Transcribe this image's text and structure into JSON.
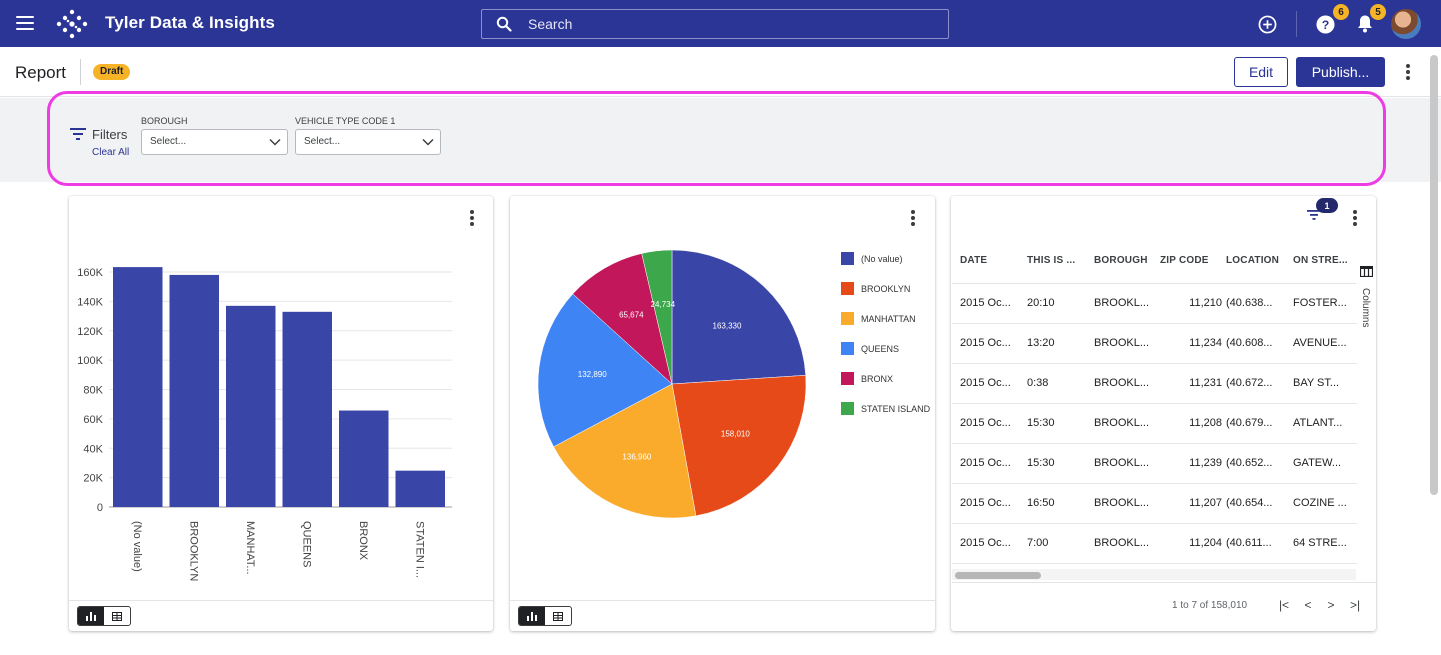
{
  "app": {
    "title": "Tyler Data & Insights"
  },
  "search": {
    "placeholder": "Search"
  },
  "topbar": {
    "help_badge": "6",
    "notification_badge": "5"
  },
  "report": {
    "title": "Report",
    "status": "Draft",
    "edit_label": "Edit",
    "publish_label": "Publish..."
  },
  "filters": {
    "label": "Filters",
    "clear_all": "Clear All",
    "borough": {
      "label": "BOROUGH",
      "placeholder": "Select..."
    },
    "vehicle_type": {
      "label": "VEHICLE TYPE CODE 1",
      "placeholder": "Select..."
    }
  },
  "chart_data": [
    {
      "type": "bar",
      "categories": [
        "(No value)",
        "BROOKLYN",
        "MANHAT...",
        "QUEENS",
        "BRONX",
        "STATEN I..."
      ],
      "values": [
        163330,
        158010,
        136960,
        132890,
        65674,
        24734
      ],
      "ylim": [
        0,
        160000
      ],
      "ytick_labels": [
        "0",
        "20K",
        "40K",
        "60K",
        "80K",
        "100K",
        "120K",
        "140K",
        "160K"
      ],
      "color": "#3a45a8",
      "grid": true,
      "xlabel": "",
      "ylabel": ""
    },
    {
      "type": "pie",
      "slices": [
        {
          "label": "(No value)",
          "value": 163330,
          "color": "#3a45a8"
        },
        {
          "label": "BROOKLYN",
          "value": 158010,
          "color": "#e64a19"
        },
        {
          "label": "MANHATTAN",
          "value": 136960,
          "color": "#fbab2c"
        },
        {
          "label": "QUEENS",
          "value": 132890,
          "color": "#3e84f4"
        },
        {
          "label": "BRONX",
          "value": 65674,
          "color": "#c2185b"
        },
        {
          "label": "STATEN ISLAND",
          "value": 24734,
          "color": "#3ca84b"
        }
      ],
      "data_labels": [
        "163,330",
        "158,010",
        "136,960",
        "132,890",
        "65,674",
        "24,734"
      ],
      "legend": "right"
    }
  ],
  "table": {
    "filter_count": "1",
    "columns_label": "Columns",
    "headers": [
      "DATE",
      "THIS IS ...",
      "BOROUGH",
      "ZIP CODE",
      "LOCATION",
      "ON STRE..."
    ],
    "rows": [
      [
        "2015 Oc...",
        "20:10",
        "BROOKL...",
        "11,210",
        "(40.638...",
        "FOSTER..."
      ],
      [
        "2015 Oc...",
        "13:20",
        "BROOKL...",
        "11,234",
        "(40.608...",
        "AVENUE..."
      ],
      [
        "2015 Oc...",
        "0:38",
        "BROOKL...",
        "11,231",
        "(40.672...",
        "BAY ST..."
      ],
      [
        "2015 Oc...",
        "15:30",
        "BROOKL...",
        "11,208",
        "(40.679...",
        "ATLANT..."
      ],
      [
        "2015 Oc...",
        "15:30",
        "BROOKL...",
        "11,239",
        "(40.652...",
        "GATEW..."
      ],
      [
        "2015 Oc...",
        "16:50",
        "BROOKL...",
        "11,207",
        "(40.654...",
        "COZINE ..."
      ],
      [
        "2015 Oc...",
        "7:00",
        "BROOKL...",
        "11,204",
        "(40.611...",
        "64 STRE..."
      ]
    ],
    "pagination": "1 to 7 of 158,010",
    "pager_icons": {
      "first": "|<",
      "prev": "<",
      "next": ">",
      "last": ">|"
    }
  }
}
